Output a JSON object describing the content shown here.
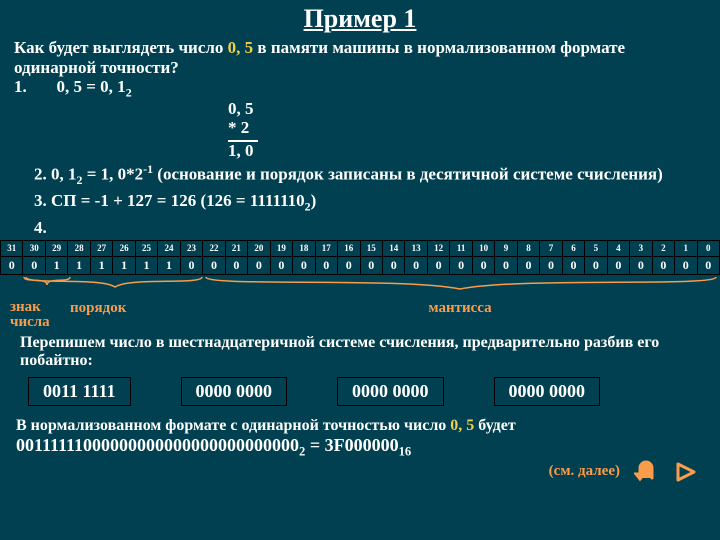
{
  "colors": {
    "bg": "#004050",
    "text": "#ffffff",
    "accent": "#f0d050",
    "orange": "#fb9c4b",
    "border": "#000000"
  },
  "title": "Пример 1",
  "question_pre": "Как будет выглядеть число ",
  "question_num": "0, 5",
  "question_post": " в памяти машины в нормализованном формате  одинарной точности?",
  "step1_pre": "1.",
  "step1_eq": "0, 5 = 0, 1",
  "step1_sub": "2",
  "mult": {
    "a": "0, 5",
    "op": "*  2",
    "res": "1, 0"
  },
  "step2": {
    "prefix": "2.   0, 1",
    "sub1": "2",
    "mid": " = 1, 0*2",
    "sup": "-1",
    "tail": " (основание и порядок записаны в десятичной системе счисления)"
  },
  "step3": {
    "prefix": "3.   СП = -1 + 127 = 126  (126 = 1111110",
    "sub": "2",
    "tail": ")"
  },
  "step4": "4.",
  "bit_indices": [
    "31",
    "30",
    "29",
    "28",
    "27",
    "26",
    "25",
    "24",
    "23",
    "22",
    "21",
    "20",
    "19",
    "18",
    "17",
    "16",
    "15",
    "14",
    "13",
    "12",
    "11",
    "10",
    "9",
    "8",
    "7",
    "6",
    "5",
    "4",
    "3",
    "2",
    "1",
    "0"
  ],
  "bit_values": [
    "0",
    "0",
    "1",
    "1",
    "1",
    "1",
    "1",
    "1",
    "0",
    "0",
    "0",
    "0",
    "0",
    "0",
    "0",
    "0",
    "0",
    "0",
    "0",
    "0",
    "0",
    "0",
    "0",
    "0",
    "0",
    "0",
    "0",
    "0",
    "0",
    "0",
    "0",
    "0"
  ],
  "labels": {
    "sign": "знак числа",
    "exp": "порядок",
    "mant": "мантисса"
  },
  "rewrite": "Перепишем число в шестнадцатеричной системе счисления, предварительно разбив его побайтно:",
  "bytes": [
    "0011 1111",
    "0000 0000",
    "0000 0000",
    "0000 0000"
  ],
  "final_pre": "В нормализованном формате с одинарной точностью число ",
  "final_num": "0, 5",
  "final_post": " будет",
  "final_bin": "00111111000000000000000000000000",
  "final_bin_sub": "2",
  "final_eq": " = 3F000000",
  "final_hex_sub": "16",
  "see_more": "(см. далее)",
  "nav": {
    "back_icon": "back-u-icon",
    "next_icon": "next-arrow-icon"
  }
}
